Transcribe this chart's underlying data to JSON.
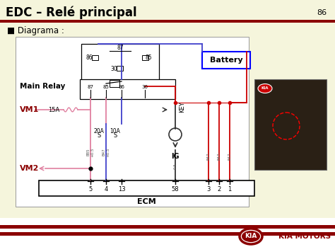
{
  "title": "EDC – Relé principal",
  "page_num": "86",
  "subtitle": "■ Diagrama :",
  "bg_color": "#F5F5DC",
  "header_bg": "#F5F5DC",
  "dark_red": "#8B0000",
  "ecm_label": "ECM",
  "battery_label": "Battery",
  "main_relay_label": "Main Relay",
  "vm1_label": "VM1",
  "vm2_label": "VM2",
  "vm1_fuse": "15A",
  "fuse1": "20A",
  "fuse2": "10A",
  "key_label": "KEY",
  "ig_label": "IG",
  "kia_text": "KIA MOTORS",
  "wire_red": "#CC0000",
  "wire_pink": "#E080A0",
  "wire_blue": "#4040CC",
  "wire_dark": "#333333"
}
